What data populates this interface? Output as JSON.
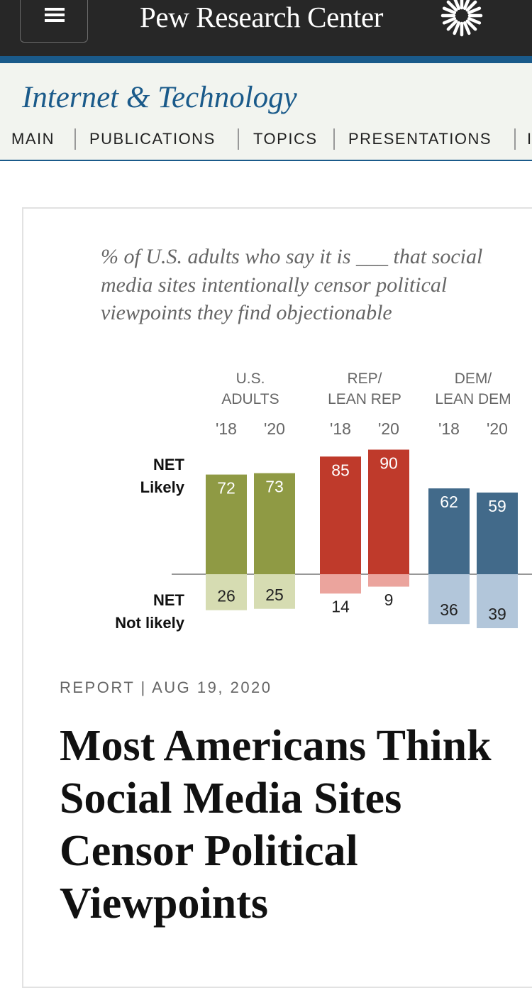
{
  "header": {
    "brand": "Pew Research Center",
    "logo_icon": "sunburst-logo-icon",
    "menu_icon": "hamburger-menu-icon"
  },
  "section": {
    "title": "Internet & Technology",
    "nav": [
      "MAIN",
      "PUBLICATIONS",
      "TOPICS",
      "PRESENTATIONS",
      "I"
    ]
  },
  "chart_data": {
    "type": "bar",
    "title": "% of U.S. adults who say it is ___ that social media sites intentionally censor political viewpoints they find objectionable",
    "groups": [
      {
        "label": "U.S. ADULTS",
        "label_lines": [
          "U.S.",
          "ADULTS"
        ],
        "color_likely": "#8f9a44",
        "color_not": "#d6dcb2"
      },
      {
        "label": "REP/ LEAN REP",
        "label_lines": [
          "REP/",
          "LEAN REP"
        ],
        "color_likely": "#bf3a2b",
        "color_not": "#eba49d"
      },
      {
        "label": "DEM/ LEAN DEM",
        "label_lines": [
          "DEM/",
          "LEAN DEM"
        ],
        "color_likely": "#426a8a",
        "color_not": "#b2c6da"
      }
    ],
    "years": [
      "'18",
      "'20"
    ],
    "series": [
      {
        "name": "NET Likely",
        "label_lines": [
          "NET",
          "Likely"
        ],
        "values": [
          [
            72,
            73
          ],
          [
            85,
            90
          ],
          [
            62,
            59
          ]
        ]
      },
      {
        "name": "NET Not likely",
        "label_lines": [
          "NET",
          "Not likely"
        ],
        "values": [
          [
            26,
            25
          ],
          [
            14,
            9
          ],
          [
            36,
            39
          ]
        ]
      }
    ],
    "axis": {
      "baseline": 0
    }
  },
  "article": {
    "meta": "REPORT | AUG 19, 2020",
    "headline": "Most Americans Think\nSocial Media Sites\nCensor Political\nViewpoints"
  }
}
